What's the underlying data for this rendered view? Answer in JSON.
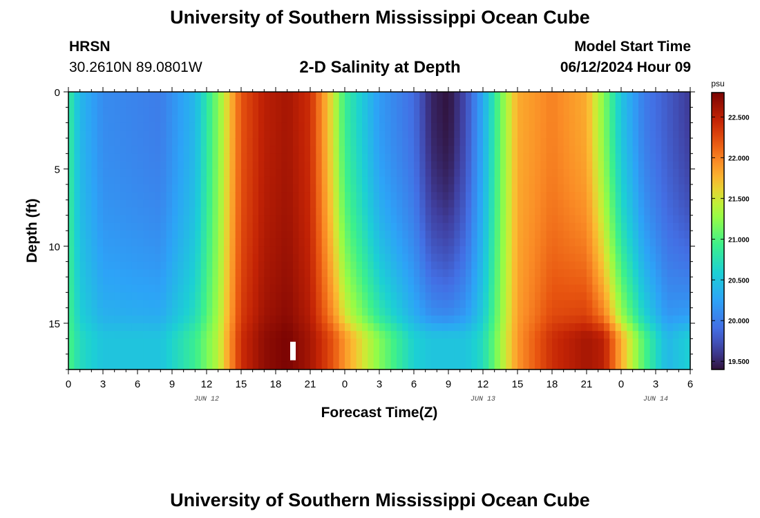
{
  "header": {
    "title_top": "University of Southern Mississippi Ocean Cube",
    "title_bottom": "University of Southern Mississippi Ocean Cube",
    "station": "HRSN",
    "coords": "30.2610N  89.0801W",
    "plot_title": "2-D Salinity at Depth",
    "model_start_label": "Model Start Time",
    "model_start_value": "06/12/2024 Hour 09"
  },
  "chart_data": {
    "type": "heatmap",
    "title": "2-D Salinity at Depth",
    "xlabel": "Forecast Time(Z)",
    "ylabel": "Depth (ft)",
    "x_ticks": [
      "0",
      "3",
      "6",
      "9",
      "12",
      "15",
      "18",
      "21",
      "0",
      "3",
      "6",
      "9",
      "12",
      "15",
      "18",
      "21",
      "0",
      "3",
      "6"
    ],
    "x_range_hours": [
      0,
      54
    ],
    "date_labels": [
      {
        "text": "JUN 12",
        "hour": 12
      },
      {
        "text": "JUN 13",
        "hour": 36
      },
      {
        "text": "JUN 14",
        "hour": 51
      }
    ],
    "y_ticks": [
      "0",
      "5",
      "10",
      "15"
    ],
    "y_range_ft": [
      0,
      18
    ],
    "colorbar": {
      "unit": "psu",
      "min": 19.4,
      "max": 22.8,
      "ticks": [
        "22.500",
        "22.000",
        "21.500",
        "21.000",
        "20.500",
        "20.000",
        "19.500"
      ],
      "tick_values": [
        22.5,
        22.0,
        21.5,
        21.0,
        20.5,
        20.0,
        19.5
      ]
    },
    "salinity_keyframes": [
      {
        "hour": 0,
        "surface": 20.9,
        "bottom": 21.0
      },
      {
        "hour": 1,
        "surface": 20.4,
        "bottom": 20.7
      },
      {
        "hour": 3,
        "surface": 20.1,
        "bottom": 20.5
      },
      {
        "hour": 8,
        "surface": 20.0,
        "bottom": 20.5
      },
      {
        "hour": 11,
        "surface": 20.4,
        "bottom": 20.9
      },
      {
        "hour": 13,
        "surface": 21.2,
        "bottom": 21.4
      },
      {
        "hour": 15,
        "surface": 22.2,
        "bottom": 22.4
      },
      {
        "hour": 17,
        "surface": 22.5,
        "bottom": 22.7
      },
      {
        "hour": 19,
        "surface": 22.6,
        "bottom": 22.8
      },
      {
        "hour": 21,
        "surface": 22.4,
        "bottom": 22.6
      },
      {
        "hour": 23,
        "surface": 21.5,
        "bottom": 22.2
      },
      {
        "hour": 24,
        "surface": 20.9,
        "bottom": 21.9
      },
      {
        "hour": 27,
        "surface": 20.2,
        "bottom": 21.2
      },
      {
        "hour": 30,
        "surface": 19.9,
        "bottom": 20.6
      },
      {
        "hour": 31.5,
        "surface": 19.5,
        "bottom": 20.5
      },
      {
        "hour": 33,
        "surface": 19.4,
        "bottom": 20.5
      },
      {
        "hour": 34.5,
        "surface": 19.7,
        "bottom": 20.5
      },
      {
        "hour": 36,
        "surface": 20.3,
        "bottom": 20.7
      },
      {
        "hour": 37.5,
        "surface": 21.1,
        "bottom": 21.3
      },
      {
        "hour": 39,
        "surface": 21.8,
        "bottom": 21.9
      },
      {
        "hour": 42,
        "surface": 22.0,
        "bottom": 22.4
      },
      {
        "hour": 45,
        "surface": 21.8,
        "bottom": 22.6
      },
      {
        "hour": 46.5,
        "surface": 21.2,
        "bottom": 22.5
      },
      {
        "hour": 48,
        "surface": 20.5,
        "bottom": 21.8
      },
      {
        "hour": 50,
        "surface": 20.0,
        "bottom": 21.0
      },
      {
        "hour": 52,
        "surface": 19.8,
        "bottom": 20.4
      },
      {
        "hour": 54,
        "surface": 19.6,
        "bottom": 20.6
      }
    ],
    "marker": {
      "hour": 19.5,
      "depth_top_ft": 16.2,
      "depth_bottom_ft": 17.4
    }
  }
}
